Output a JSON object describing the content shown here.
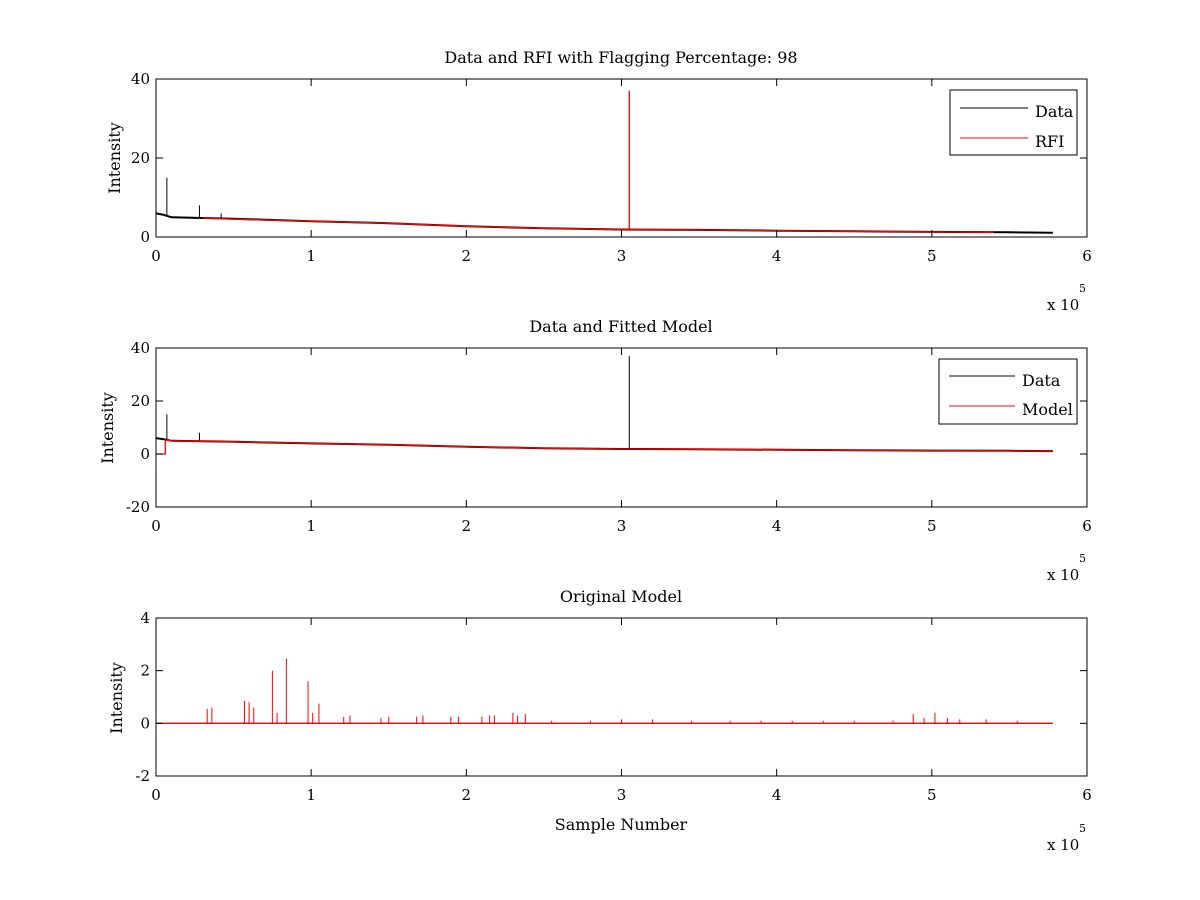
{
  "chart_data": [
    {
      "type": "line",
      "title": "Data and RFI with Flagging Percentage: 98",
      "xlabel": "",
      "ylabel": "Intensity",
      "xlim": [
        0,
        6
      ],
      "ylim": [
        0,
        40
      ],
      "xticks": [
        "0",
        "1",
        "2",
        "3",
        "4",
        "5",
        "6"
      ],
      "yticks": [
        "0",
        "20",
        "40"
      ],
      "x_multiplier": {
        "base": "x 10",
        "exp": "5"
      },
      "x_units": "x 10^5 samples",
      "legend": {
        "location": "top-right",
        "entries": [
          "Data",
          "RFI"
        ]
      },
      "series": [
        {
          "name": "Data",
          "color": "#000000",
          "baseline": {
            "x": [
              0.0,
              0.05,
              0.1,
              0.5,
              1.0,
              1.5,
              2.0,
              2.5,
              3.0,
              3.5,
              4.0,
              4.5,
              5.0,
              5.5,
              5.78
            ],
            "y": [
              6.0,
              5.6,
              5.0,
              4.6,
              4.0,
              3.5,
              2.7,
              2.2,
              1.9,
              1.8,
              1.6,
              1.45,
              1.3,
              1.2,
              1.1
            ]
          },
          "spikes": [
            {
              "x": 0.07,
              "y": 15
            },
            {
              "x": 0.28,
              "y": 8
            },
            {
              "x": 0.42,
              "y": 6
            },
            {
              "x": 3.05,
              "y": 37
            }
          ]
        },
        {
          "name": "RFI",
          "color": "#ff0000",
          "baseline": {
            "x": [
              0.3,
              0.5,
              1.0,
              1.5,
              2.0,
              2.5,
              3.0,
              3.5,
              4.0,
              4.5,
              5.0,
              5.4
            ],
            "y": [
              4.8,
              4.5,
              4.0,
              3.5,
              2.7,
              2.2,
              1.9,
              1.8,
              1.6,
              1.45,
              1.3,
              1.2
            ]
          },
          "spikes": [
            {
              "x": 3.05,
              "y": 37
            }
          ]
        }
      ]
    },
    {
      "type": "line",
      "title": "Data and Fitted Model",
      "xlabel": "",
      "ylabel": "Intensity",
      "xlim": [
        0,
        6
      ],
      "ylim": [
        -20,
        40
      ],
      "xticks": [
        "0",
        "1",
        "2",
        "3",
        "4",
        "5",
        "6"
      ],
      "yticks": [
        "-20",
        "0",
        "20",
        "40"
      ],
      "x_multiplier": {
        "base": "x 10",
        "exp": "5"
      },
      "x_units": "x 10^5 samples",
      "legend": {
        "location": "top-right",
        "entries": [
          "Data",
          "Model"
        ]
      },
      "series": [
        {
          "name": "Data",
          "color": "#000000",
          "baseline": {
            "x": [
              0.0,
              0.05,
              0.1,
              0.5,
              1.0,
              1.5,
              2.0,
              2.5,
              3.0,
              3.5,
              4.0,
              4.5,
              5.0,
              5.5,
              5.78
            ],
            "y": [
              6.0,
              5.6,
              5.0,
              4.6,
              4.0,
              3.5,
              2.7,
              2.2,
              1.9,
              1.8,
              1.6,
              1.45,
              1.3,
              1.2,
              1.1
            ]
          },
          "spikes": [
            {
              "x": 0.07,
              "y": 15
            },
            {
              "x": 0.28,
              "y": 8
            },
            {
              "x": 3.05,
              "y": 37
            }
          ]
        },
        {
          "name": "Model",
          "color": "#ff0000",
          "baseline": {
            "x": [
              0.0,
              0.06,
              0.06,
              0.1,
              0.5,
              1.0,
              1.5,
              2.0,
              2.5,
              3.0,
              3.5,
              4.0,
              4.5,
              5.0,
              5.5,
              5.78
            ],
            "y": [
              0.0,
              0.0,
              5.2,
              5.0,
              4.6,
              4.0,
              3.5,
              2.7,
              2.2,
              1.9,
              1.8,
              1.6,
              1.45,
              1.3,
              1.2,
              1.1
            ]
          },
          "spikes": []
        }
      ]
    },
    {
      "type": "line",
      "title": "Original Model",
      "xlabel": "Sample Number",
      "ylabel": "Intensity",
      "xlim": [
        0,
        6
      ],
      "ylim": [
        -2,
        4
      ],
      "xticks": [
        "0",
        "1",
        "2",
        "3",
        "4",
        "5",
        "6"
      ],
      "yticks": [
        "-2",
        "0",
        "2",
        "4"
      ],
      "x_multiplier": {
        "base": "x 10",
        "exp": "5"
      },
      "x_units": "x 10^5 samples",
      "legend": null,
      "series": [
        {
          "name": "Model",
          "color": "#ff0000",
          "baseline": {
            "x": [
              0.0,
              5.78
            ],
            "y": [
              0.0,
              0.0
            ]
          },
          "spikes": [
            {
              "x": 0.33,
              "y": 0.55
            },
            {
              "x": 0.36,
              "y": 0.6
            },
            {
              "x": 0.57,
              "y": 0.85
            },
            {
              "x": 0.6,
              "y": 0.8
            },
            {
              "x": 0.63,
              "y": 0.6
            },
            {
              "x": 0.75,
              "y": 2.0
            },
            {
              "x": 0.78,
              "y": 0.4
            },
            {
              "x": 0.84,
              "y": 2.45
            },
            {
              "x": 0.98,
              "y": 1.6
            },
            {
              "x": 1.01,
              "y": 0.4
            },
            {
              "x": 1.05,
              "y": 0.75
            },
            {
              "x": 1.21,
              "y": 0.25
            },
            {
              "x": 1.25,
              "y": 0.3
            },
            {
              "x": 1.45,
              "y": 0.2
            },
            {
              "x": 1.5,
              "y": 0.25
            },
            {
              "x": 1.68,
              "y": 0.25
            },
            {
              "x": 1.72,
              "y": 0.3
            },
            {
              "x": 1.9,
              "y": 0.25
            },
            {
              "x": 1.95,
              "y": 0.25
            },
            {
              "x": 2.1,
              "y": 0.25
            },
            {
              "x": 2.15,
              "y": 0.3
            },
            {
              "x": 2.18,
              "y": 0.3
            },
            {
              "x": 2.3,
              "y": 0.4
            },
            {
              "x": 2.33,
              "y": 0.3
            },
            {
              "x": 2.38,
              "y": 0.35
            },
            {
              "x": 2.55,
              "y": 0.1
            },
            {
              "x": 2.8,
              "y": 0.1
            },
            {
              "x": 3.0,
              "y": 0.15
            },
            {
              "x": 3.2,
              "y": 0.15
            },
            {
              "x": 3.45,
              "y": 0.1
            },
            {
              "x": 3.7,
              "y": 0.1
            },
            {
              "x": 3.9,
              "y": 0.1
            },
            {
              "x": 4.1,
              "y": 0.1
            },
            {
              "x": 4.3,
              "y": 0.1
            },
            {
              "x": 4.5,
              "y": 0.1
            },
            {
              "x": 4.75,
              "y": 0.1
            },
            {
              "x": 4.88,
              "y": 0.35
            },
            {
              "x": 4.95,
              "y": 0.2
            },
            {
              "x": 5.02,
              "y": 0.4
            },
            {
              "x": 5.1,
              "y": 0.2
            },
            {
              "x": 5.18,
              "y": 0.15
            },
            {
              "x": 5.35,
              "y": 0.15
            },
            {
              "x": 5.55,
              "y": 0.1
            }
          ]
        }
      ]
    }
  ]
}
